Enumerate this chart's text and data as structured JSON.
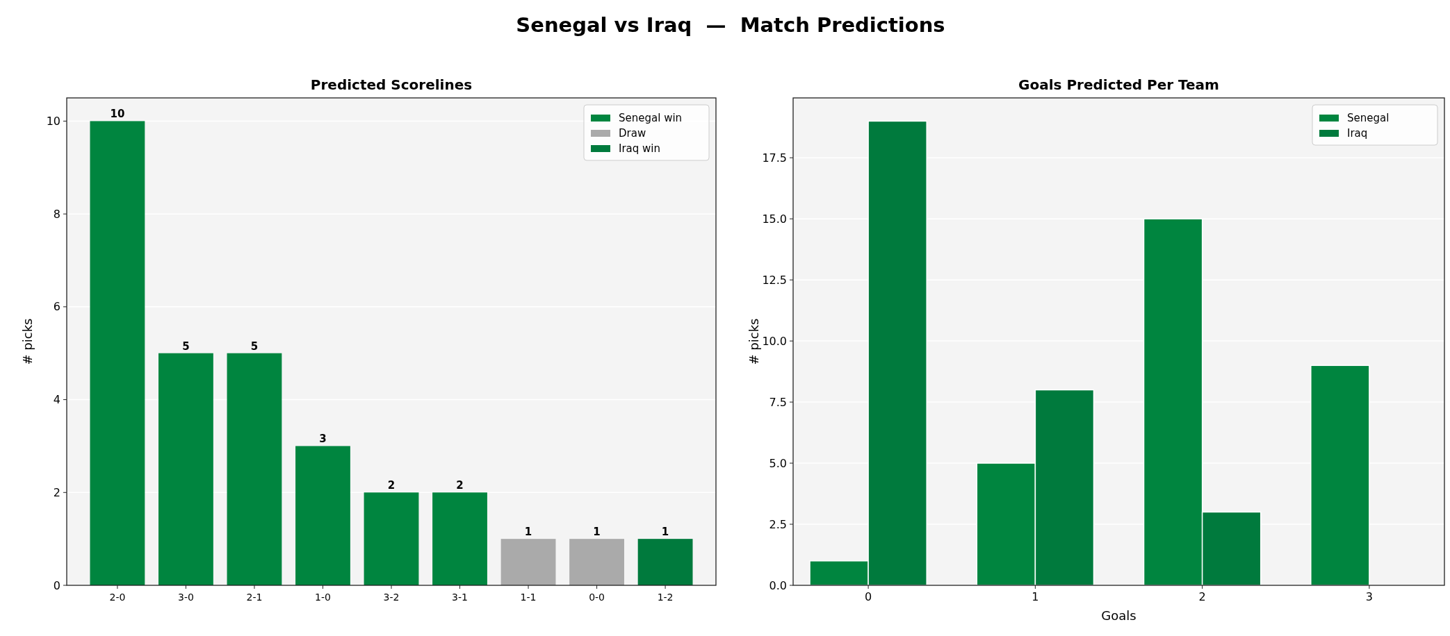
{
  "chart_data": [
    {
      "type": "bar",
      "title": "Predicted Scorelines",
      "ylabel": "# picks",
      "annotations": [
        "Senegal vs Iraq  —  Match Predictions"
      ],
      "categories": [
        "2-0",
        "3-0",
        "2-1",
        "1-0",
        "3-2",
        "3-1",
        "1-1",
        "0-0",
        "1-2"
      ],
      "stacked": true,
      "series": [
        {
          "name": "Senegal win",
          "color": "#00853f",
          "values": [
            10,
            5,
            5,
            3,
            2,
            2,
            null,
            null,
            null
          ]
        },
        {
          "name": "Draw",
          "color": "#aaaaaa",
          "values": [
            null,
            null,
            null,
            null,
            null,
            null,
            1,
            1,
            null
          ]
        },
        {
          "name": "Iraq win",
          "color": "#007a3d",
          "values": [
            null,
            null,
            null,
            null,
            null,
            null,
            null,
            null,
            1
          ]
        }
      ],
      "ylim": [
        0,
        10.5
      ],
      "yticks": [
        0,
        2,
        4,
        6,
        8,
        10
      ],
      "grid": "y",
      "legend": "top right",
      "data_labels": true
    },
    {
      "type": "bar",
      "title": "Goals Predicted Per Team",
      "xlabel": "Goals",
      "ylabel": "# picks",
      "categories": [
        "0",
        "1",
        "2",
        "3"
      ],
      "series": [
        {
          "name": "Senegal",
          "color": "#00853f",
          "values": [
            1,
            5,
            15,
            9
          ]
        },
        {
          "name": "Iraq",
          "color": "#007a3d",
          "values": [
            19,
            8,
            3,
            0
          ]
        }
      ],
      "ylim": [
        0,
        19.95
      ],
      "yticks": [
        {
          "value": 0,
          "label": "0.0"
        },
        {
          "value": 2.5,
          "label": "2.5"
        },
        {
          "value": 5,
          "label": "5.0"
        },
        {
          "value": 7.5,
          "label": "7.5"
        },
        {
          "value": 10,
          "label": "10.0"
        },
        {
          "value": 12.5,
          "label": "12.5"
        },
        {
          "value": 15,
          "label": "15.0"
        },
        {
          "value": 17.5,
          "label": "17.5"
        }
      ],
      "grid": "y",
      "legend": "top right"
    }
  ]
}
